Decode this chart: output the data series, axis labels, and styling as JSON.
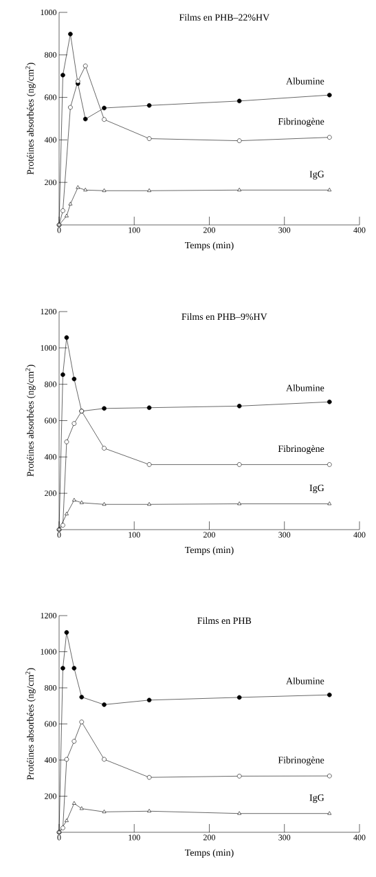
{
  "chart_data": [
    {
      "type": "line",
      "title": "Films en PHB–22%HV",
      "xlabel": "Temps (min)",
      "ylabel": "Protéines absorbées (ng/cm$^{2}$)",
      "xlim": [
        0,
        400
      ],
      "ylim": [
        0,
        1000
      ],
      "xticks": [
        0,
        100,
        200,
        300,
        400
      ],
      "yticks": [
        200,
        400,
        600,
        800,
        1000
      ],
      "series": [
        {
          "name": "Albumine",
          "color": "#000000",
          "marker": "circle",
          "x": [
            0,
            5,
            15,
            25,
            35,
            60,
            120,
            240,
            360
          ],
          "values": [
            0,
            705,
            898,
            665,
            498,
            550,
            562,
            583,
            611
          ]
        },
        {
          "name": "Fibrinogène",
          "color": "#000000",
          "marker": "circle",
          "x": [
            0,
            5,
            15,
            25,
            35,
            60,
            120,
            240,
            360
          ],
          "values": [
            0,
            67,
            553,
            676,
            748,
            496,
            406,
            396,
            412
          ]
        },
        {
          "name": "IgG",
          "color": "#000000",
          "marker": "triangle",
          "x": [
            0,
            10,
            15,
            25,
            35,
            60,
            120,
            240,
            360
          ],
          "values": [
            0,
            42,
            98,
            176,
            164,
            161,
            161,
            164,
            164
          ]
        }
      ]
    },
    {
      "type": "line",
      "title": "Films en PHB–9%HV",
      "xlabel": "Temps (min)",
      "ylabel": "Protéines absorbées (ng/cm$^{2}$)",
      "xlim": [
        0,
        400
      ],
      "ylim": [
        0,
        1200
      ],
      "xticks": [
        0,
        100,
        200,
        300,
        400
      ],
      "yticks": [
        200,
        400,
        600,
        800,
        1000,
        1200
      ],
      "series": [
        {
          "name": "Albumine",
          "color": "#000000",
          "marker": "circle",
          "x": [
            0,
            5,
            10,
            20,
            30,
            60,
            120,
            240,
            360
          ],
          "values": [
            0,
            853,
            1057,
            829,
            652,
            667,
            671,
            680,
            703
          ]
        },
        {
          "name": "Fibrinogène",
          "color": "#000000",
          "marker": "circle",
          "x": [
            0,
            5,
            10,
            20,
            30,
            60,
            120,
            240,
            360
          ],
          "values": [
            0,
            24,
            483,
            584,
            652,
            448,
            358,
            358,
            358
          ]
        },
        {
          "name": "IgG",
          "color": "#000000",
          "marker": "triangle",
          "x": [
            0,
            10,
            20,
            30,
            60,
            120,
            240,
            360
          ],
          "values": [
            0,
            86,
            162,
            148,
            139,
            139,
            142,
            142
          ]
        }
      ]
    },
    {
      "type": "line",
      "title": "Films en PHB",
      "xlabel": "Temps (min)",
      "ylabel": "Protéines absorbées (ng/cm$^{2}$)",
      "xlim": [
        0,
        400
      ],
      "ylim": [
        0,
        1200
      ],
      "xticks": [
        0,
        100,
        200,
        300,
        400
      ],
      "yticks": [
        200,
        400,
        600,
        800,
        1000,
        1200
      ],
      "series": [
        {
          "name": "Albumine",
          "color": "#000000",
          "marker": "circle",
          "x": [
            0,
            5,
            10,
            20,
            30,
            60,
            120,
            240,
            360
          ],
          "values": [
            0,
            909,
            1107,
            909,
            749,
            707,
            732,
            747,
            761
          ]
        },
        {
          "name": "Fibrinogène",
          "color": "#000000",
          "marker": "circle",
          "x": [
            0,
            5,
            10,
            20,
            30,
            60,
            120,
            240,
            360
          ],
          "values": [
            0,
            24,
            404,
            504,
            611,
            404,
            304,
            311,
            312
          ]
        },
        {
          "name": "IgG",
          "color": "#000000",
          "marker": "triangle",
          "x": [
            0,
            10,
            20,
            30,
            60,
            120,
            240,
            360
          ],
          "values": [
            0,
            64,
            160,
            131,
            113,
            117,
            104,
            104
          ]
        }
      ]
    }
  ]
}
